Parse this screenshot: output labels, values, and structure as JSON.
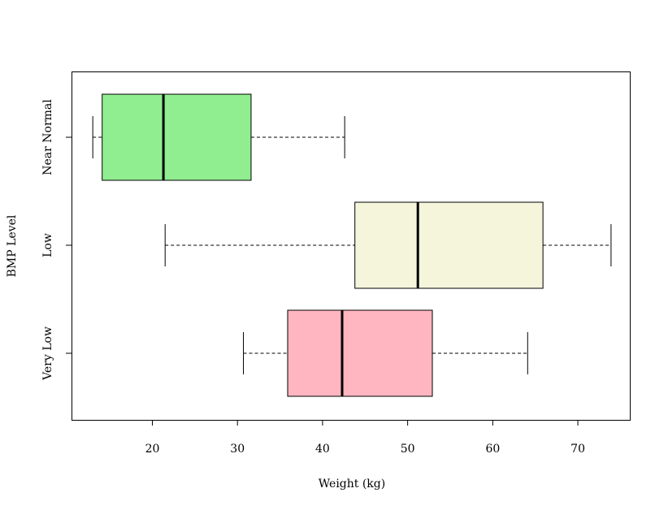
{
  "chart_data": {
    "type": "boxplot",
    "orientation": "horizontal",
    "title": "",
    "xlabel": "Weight (kg)",
    "ylabel": "BMP Level",
    "xlim": [
      10.5,
      76.2
    ],
    "xticks": [
      20,
      30,
      40,
      50,
      60,
      70
    ],
    "grid": false,
    "legend": "none",
    "categories": [
      "Very Low",
      "Low",
      "Near Normal"
    ],
    "boxes": [
      {
        "label": "Very Low",
        "whisker_low": 30.7,
        "q1": 35.9,
        "median": 42.3,
        "q3": 52.9,
        "whisker_high": 64.1,
        "fill": "#ffb6c1"
      },
      {
        "label": "Low",
        "whisker_low": 21.5,
        "q1": 43.8,
        "median": 51.2,
        "q3": 65.9,
        "whisker_high": 73.9,
        "fill": "#f5f5dc"
      },
      {
        "label": "Near Normal",
        "whisker_low": 13.0,
        "q1": 14.1,
        "median": 21.3,
        "q3": 31.6,
        "whisker_high": 42.6,
        "fill": "#90ee90"
      }
    ]
  }
}
